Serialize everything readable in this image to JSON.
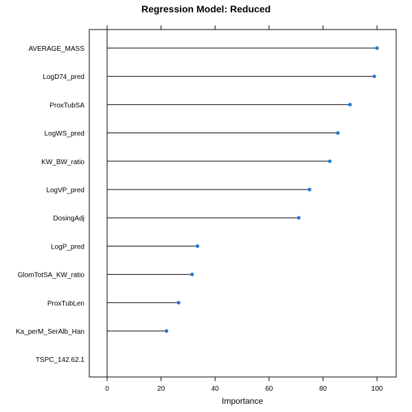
{
  "chart_data": {
    "type": "lollipop",
    "title": "Regression Model: Reduced",
    "xlabel": "Importance",
    "ylabel": "",
    "xlim": [
      -6.5,
      106
    ],
    "xticks": [
      0,
      20,
      40,
      60,
      80,
      100
    ],
    "grid": false,
    "categories": [
      "AVERAGE_MASS",
      "LogD74_pred",
      "ProxTubSA",
      "LogWS_pred",
      "KW_BW_ratio",
      "LogVP_pred",
      "DosingAdj",
      "LogP_pred",
      "GlomTotSA_KW_ratio",
      "ProxTubLen",
      "Ka_perM_SerAlb_Han",
      "TSPC_142.62.1"
    ],
    "values": [
      100,
      99,
      90,
      85.5,
      82.5,
      75,
      71,
      33.5,
      31.5,
      26.5,
      22,
      0
    ],
    "show_point": [
      true,
      true,
      true,
      true,
      true,
      true,
      true,
      true,
      true,
      true,
      true,
      false
    ],
    "point_color": "#1f77d4",
    "line_color": "#000000"
  }
}
